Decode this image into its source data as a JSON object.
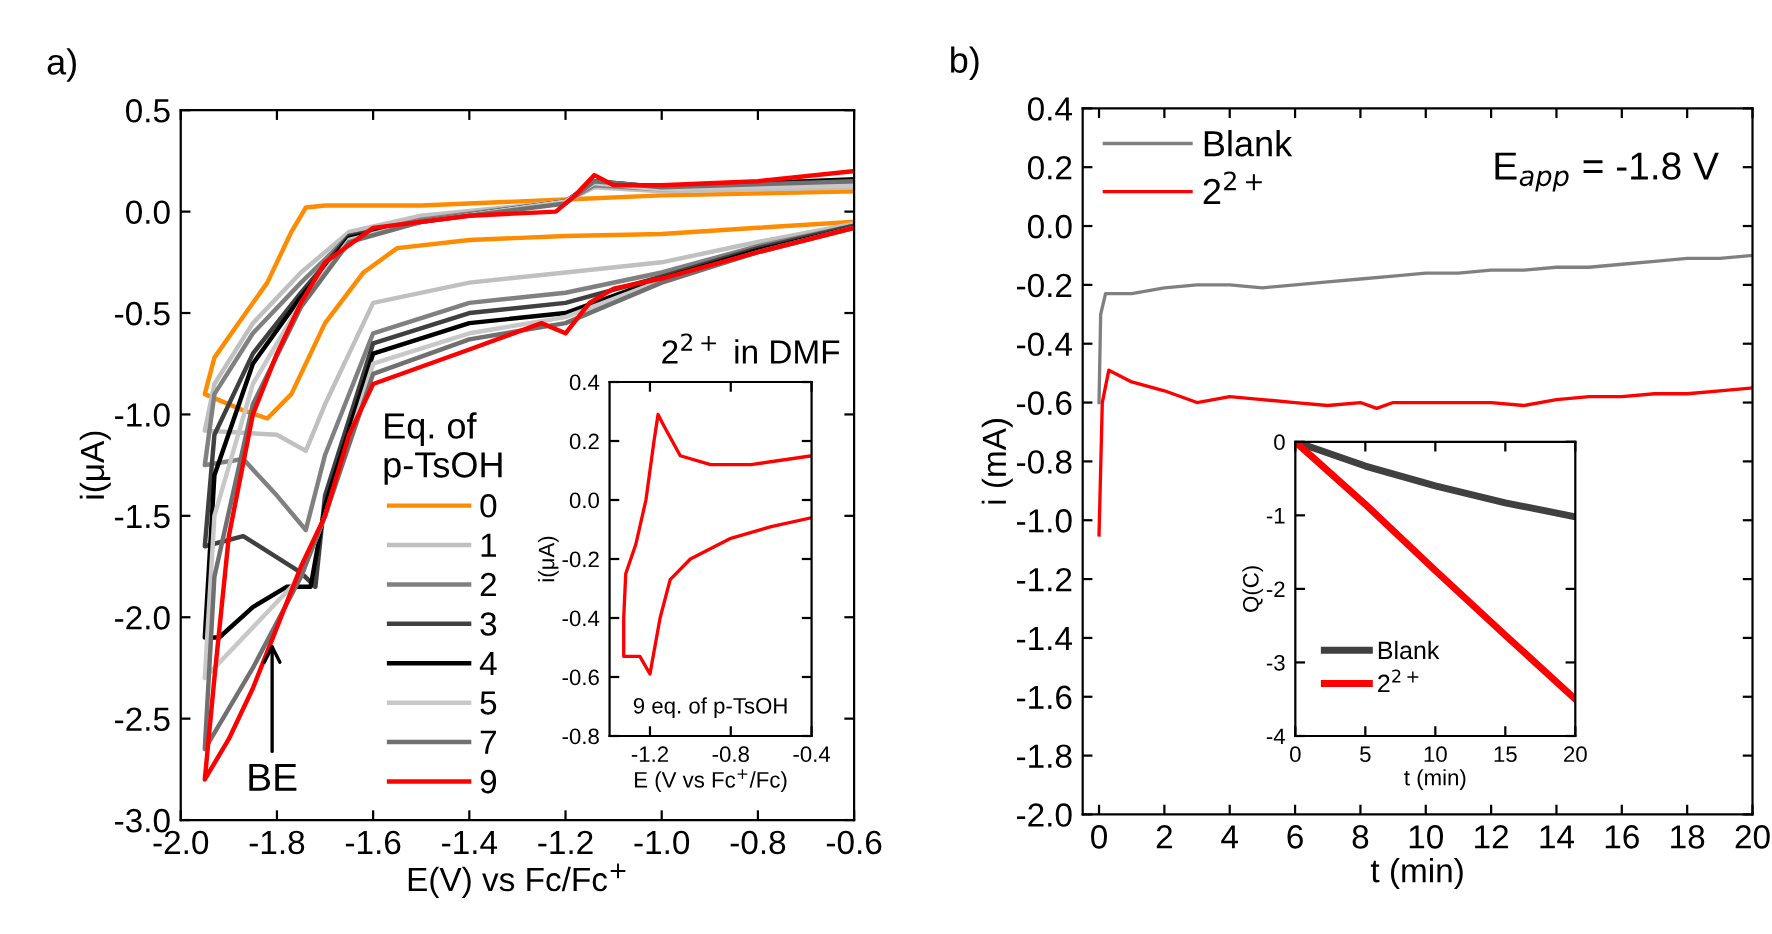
{
  "chart_data": [
    {
      "type": "line",
      "title": "a)",
      "xlabel": "E(V) vs Fc/Fc$^{+}$",
      "ylabel": "i(μA)",
      "legend_title": "Eq. of\np-TsOH",
      "legend": "bottom",
      "xlim": [
        -2.0,
        -0.6
      ],
      "xticks": [
        {
          "value": -2,
          "label": "-2.0"
        },
        -1.8,
        -1.6,
        -1.4,
        -1.2,
        {
          "value": -1,
          "label": "-1.0"
        },
        -0.8,
        -0.6
      ],
      "ylim": [
        -3.0,
        0.5
      ],
      "yticks": [
        {
          "value": -3,
          "label": "-3.0"
        },
        -2.5,
        {
          "value": -2,
          "label": "-2.0"
        },
        -1.5,
        {
          "value": -1,
          "label": "-1.0"
        },
        -0.5,
        {
          "value": 0,
          "label": "0.0"
        },
        0.5
      ],
      "grid": false,
      "annotations": [
        "2$^{2+}$ in DMF",
        {
          "text": "BE",
          "x": -1.81,
          "y": -2.1
        }
      ],
      "series": [
        {
          "name": "0",
          "color": "#ff8c00",
          "x": [
            -0.6,
            -0.8,
            -1.0,
            -1.2,
            -1.4,
            -1.55,
            -1.62,
            -1.7,
            -1.77,
            -1.82,
            -1.87,
            -1.95,
            -1.93,
            -1.88,
            -1.82,
            -1.77,
            -1.74,
            -1.7,
            -1.5,
            -1.2,
            -1.0,
            -0.6
          ],
          "values": [
            -0.05,
            -0.08,
            -0.11,
            -0.12,
            -0.14,
            -0.18,
            -0.3,
            -0.55,
            -0.9,
            -1.02,
            -0.98,
            -0.9,
            -0.72,
            -0.55,
            -0.35,
            -0.1,
            0.02,
            0.03,
            0.03,
            0.06,
            0.08,
            0.1
          ]
        },
        {
          "name": "1",
          "color": "#c0c0c0",
          "x": [
            -0.6,
            -0.8,
            -1.0,
            -1.2,
            -1.4,
            -1.6,
            -1.7,
            -1.74,
            -1.8,
            -1.95,
            -1.93,
            -1.85,
            -1.75,
            -1.65,
            -1.5,
            -1.2,
            -1.14,
            -1.0,
            -0.6
          ],
          "values": [
            -0.06,
            -0.15,
            -0.25,
            -0.3,
            -0.35,
            -0.45,
            -0.95,
            -1.18,
            -1.1,
            -1.08,
            -0.85,
            -0.55,
            -0.3,
            -0.1,
            -0.02,
            0.05,
            0.12,
            0.1,
            0.12
          ]
        },
        {
          "name": "2",
          "color": "#808080",
          "x": [
            -0.6,
            -0.8,
            -1.0,
            -1.2,
            -1.4,
            -1.6,
            -1.7,
            -1.74,
            -1.8,
            -1.87,
            -1.95,
            -1.93,
            -1.85,
            -1.75,
            -1.65,
            -1.5,
            -1.2,
            -1.14,
            -1.0,
            -0.6
          ],
          "values": [
            -0.07,
            -0.17,
            -0.3,
            -0.4,
            -0.45,
            -0.6,
            -1.2,
            -1.57,
            -1.4,
            -1.22,
            -1.25,
            -0.9,
            -0.6,
            -0.35,
            -0.12,
            -0.04,
            0.05,
            0.13,
            0.11,
            0.14
          ]
        },
        {
          "name": "3",
          "color": "#404040",
          "x": [
            -0.6,
            -0.8,
            -1.0,
            -1.2,
            -1.4,
            -1.6,
            -1.7,
            -1.72,
            -1.75,
            -1.87,
            -1.95,
            -1.93,
            -1.85,
            -1.75,
            -1.65,
            -1.5,
            -1.2,
            -1.14,
            -1.0,
            -0.6
          ],
          "values": [
            -0.07,
            -0.18,
            -0.32,
            -0.45,
            -0.5,
            -0.65,
            -1.4,
            -1.85,
            -1.78,
            -1.6,
            -1.65,
            -1.1,
            -0.7,
            -0.4,
            -0.12,
            -0.05,
            0.05,
            0.14,
            0.12,
            0.15
          ]
        },
        {
          "name": "4",
          "color": "#000000",
          "x": [
            -0.6,
            -0.8,
            -1.0,
            -1.2,
            -1.4,
            -1.6,
            -1.7,
            -1.73,
            -1.78,
            -1.85,
            -1.92,
            -1.95,
            -1.93,
            -1.85,
            -1.75,
            -1.65,
            -1.5,
            -1.2,
            -1.14,
            -1.0,
            -0.6
          ],
          "values": [
            -0.08,
            -0.19,
            -0.33,
            -0.5,
            -0.55,
            -0.7,
            -1.45,
            -1.85,
            -1.85,
            -1.95,
            -2.1,
            -2.1,
            -1.3,
            -0.75,
            -0.42,
            -0.13,
            -0.05,
            0.05,
            0.15,
            0.12,
            0.16
          ]
        },
        {
          "name": "5",
          "color": "#c8c8c8",
          "x": [
            -0.6,
            -0.8,
            -1.0,
            -1.2,
            -1.4,
            -1.6,
            -1.7,
            -1.75,
            -1.85,
            -1.95,
            -1.93,
            -1.85,
            -1.75,
            -1.65,
            -1.5,
            -1.2,
            -1.14,
            -1.0,
            -0.6
          ],
          "values": [
            -0.08,
            -0.2,
            -0.34,
            -0.52,
            -0.6,
            -0.75,
            -1.5,
            -1.8,
            -2.05,
            -2.3,
            -1.5,
            -0.85,
            -0.45,
            -0.14,
            -0.05,
            0.05,
            0.14,
            0.11,
            0.13
          ]
        },
        {
          "name": "7",
          "color": "#707070",
          "x": [
            -0.6,
            -0.8,
            -1.0,
            -1.2,
            -1.4,
            -1.6,
            -1.7,
            -1.75,
            -1.85,
            -1.95,
            -1.93,
            -1.85,
            -1.75,
            -1.65,
            -1.5,
            -1.2,
            -1.14,
            -1.0,
            -0.6
          ],
          "values": [
            -0.08,
            -0.2,
            -0.35,
            -0.55,
            -0.63,
            -0.8,
            -1.5,
            -1.8,
            -2.25,
            -2.65,
            -1.8,
            -0.95,
            -0.47,
            -0.15,
            -0.05,
            0.04,
            0.15,
            0.12,
            0.15
          ]
        },
        {
          "name": "9",
          "color": "#ff0000",
          "x": [
            -0.6,
            -0.8,
            -1.0,
            -1.1,
            -1.15,
            -1.2,
            -1.25,
            -1.4,
            -1.6,
            -1.65,
            -1.7,
            -1.75,
            -1.8,
            -1.85,
            -1.9,
            -1.95,
            -1.93,
            -1.9,
            -1.85,
            -1.8,
            -1.75,
            -1.7,
            -1.6,
            -1.4,
            -1.22,
            -1.18,
            -1.14,
            -1.1,
            -1.0,
            -0.8,
            -0.6
          ],
          "values": [
            -0.08,
            -0.2,
            -0.33,
            -0.38,
            -0.45,
            -0.6,
            -0.55,
            -0.68,
            -0.85,
            -1.1,
            -1.5,
            -1.75,
            -2.05,
            -2.35,
            -2.6,
            -2.8,
            -2.3,
            -1.6,
            -1.0,
            -0.7,
            -0.45,
            -0.25,
            -0.08,
            -0.02,
            0.0,
            0.08,
            0.18,
            0.13,
            0.13,
            0.15,
            0.2
          ]
        }
      ]
    },
    {
      "type": "line",
      "xlabel": "E (V vs Fc$^{+}$/Fc)",
      "ylabel": "i(μA)",
      "annotations": [
        "9 eq. of p-TsOH"
      ],
      "xlim": [
        -1.4,
        -0.4
      ],
      "xticks": [
        -1.2,
        -0.8,
        -0.4
      ],
      "ylim": [
        -0.8,
        0.4
      ],
      "yticks": [
        -0.8,
        -0.6,
        -0.4,
        -0.2,
        {
          "value": 0,
          "label": "0.0"
        },
        0.2,
        0.4
      ],
      "grid": false,
      "series": [
        {
          "color": "#ff0000",
          "x": [
            -0.4,
            -0.6,
            -0.8,
            -1.0,
            -1.1,
            -1.15,
            -1.2,
            -1.25,
            -1.3,
            -1.33,
            -1.33,
            -1.32,
            -1.27,
            -1.22,
            -1.18,
            -1.16,
            -1.13,
            -1.05,
            -0.9,
            -0.7,
            -0.4
          ],
          "values": [
            -0.06,
            -0.09,
            -0.13,
            -0.2,
            -0.27,
            -0.4,
            -0.59,
            -0.53,
            -0.53,
            -0.53,
            -0.4,
            -0.25,
            -0.15,
            0.0,
            0.2,
            0.29,
            0.25,
            0.15,
            0.12,
            0.12,
            0.15
          ]
        }
      ]
    },
    {
      "type": "line",
      "title": "b)",
      "xlabel": "t (min)",
      "ylabel": "i (mA)",
      "legend": "top left",
      "annotations": [
        "E$_{app}$ = -1.8 V"
      ],
      "xlim": [
        -0.5,
        20
      ],
      "xticks": [
        0,
        2,
        4,
        6,
        8,
        10,
        12,
        14,
        16,
        18,
        20
      ],
      "ylim": [
        -2.0,
        0.4
      ],
      "yticks": [
        {
          "value": -2,
          "label": "-2.0"
        },
        -1.8,
        -1.6,
        -1.4,
        -1.2,
        {
          "value": -1,
          "label": "-1.0"
        },
        -0.8,
        -0.6,
        -0.4,
        -0.2,
        {
          "value": 0,
          "label": "0.0"
        },
        0.2,
        0.4
      ],
      "grid": false,
      "series": [
        {
          "name": "Blank",
          "color": "#808080",
          "x": [
            0,
            0.05,
            0.2,
            1,
            2,
            3,
            4,
            5,
            6,
            7,
            8,
            9,
            10,
            11,
            12,
            13,
            14,
            15,
            16,
            17,
            18,
            19,
            20
          ],
          "values": [
            -0.6,
            -0.3,
            -0.23,
            -0.23,
            -0.21,
            -0.2,
            -0.2,
            -0.21,
            -0.2,
            -0.19,
            -0.18,
            -0.17,
            -0.16,
            -0.16,
            -0.15,
            -0.15,
            -0.14,
            -0.14,
            -0.13,
            -0.12,
            -0.11,
            -0.11,
            -0.1
          ]
        },
        {
          "name": "2$^{2+}$",
          "color": "#ff0000",
          "x": [
            0,
            0.1,
            0.3,
            1,
            2,
            3,
            4,
            5,
            6,
            7,
            8,
            8.5,
            9,
            10,
            11,
            12,
            13,
            14,
            15,
            16,
            17,
            18,
            19,
            20
          ],
          "values": [
            -1.05,
            -0.6,
            -0.49,
            -0.53,
            -0.56,
            -0.6,
            -0.58,
            -0.59,
            -0.6,
            -0.61,
            -0.6,
            -0.62,
            -0.6,
            -0.6,
            -0.6,
            -0.6,
            -0.61,
            -0.59,
            -0.58,
            -0.58,
            -0.57,
            -0.57,
            -0.56,
            -0.55
          ]
        }
      ]
    },
    {
      "type": "line",
      "xlabel": "t (min)",
      "ylabel": "Q(C)",
      "legend": "bottom left",
      "xlim": [
        0,
        20
      ],
      "xticks": [
        0,
        5,
        10,
        15,
        20
      ],
      "ylim": [
        -4,
        0
      ],
      "yticks": [
        -4,
        -3,
        -2,
        -1,
        0
      ],
      "grid": false,
      "series": [
        {
          "name": "Blank",
          "color": "#404040",
          "x": [
            0,
            5,
            10,
            15,
            20
          ],
          "values": [
            0,
            -0.33,
            -0.6,
            -0.83,
            -1.02
          ]
        },
        {
          "name": "2$^{2+}$",
          "color": "#ff0000",
          "x": [
            0,
            5,
            10,
            15,
            20
          ],
          "values": [
            0,
            -0.85,
            -1.75,
            -2.63,
            -3.5
          ]
        }
      ]
    }
  ]
}
